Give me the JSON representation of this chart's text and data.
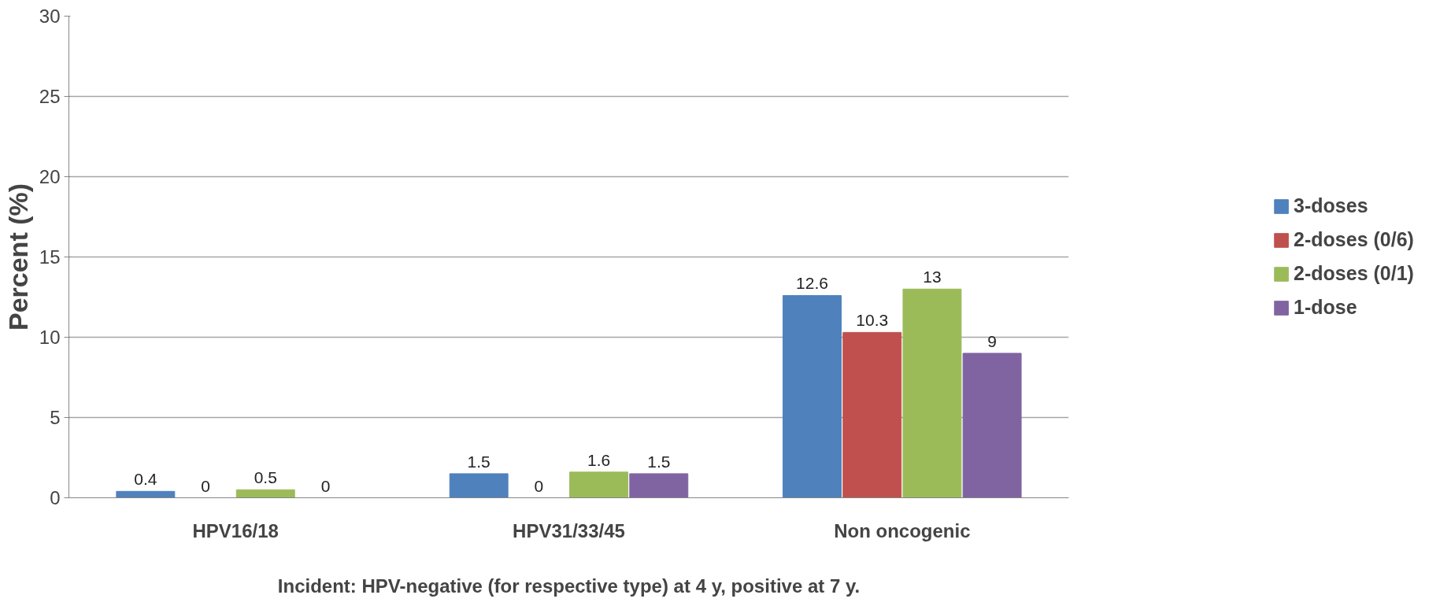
{
  "chart_data": {
    "type": "bar",
    "xlabel": "Incident: HPV-negative (for respective type) at 4 y, positive at 7 y.",
    "ylabel": "Percent (%)",
    "categories": [
      "HPV16/18",
      "HPV31/33/45",
      "Non oncogenic"
    ],
    "series": [
      {
        "name": "3-doses",
        "color": "#4f81bd",
        "values": [
          0.4,
          1.5,
          12.6
        ]
      },
      {
        "name": "2-doses (0/6)",
        "color": "#c0504d",
        "values": [
          0,
          0,
          10.3
        ]
      },
      {
        "name": "2-doses (0/1)",
        "color": "#9bbb59",
        "values": [
          0.5,
          1.6,
          13
        ]
      },
      {
        "name": "1-dose",
        "color": "#8064a2",
        "values": [
          0,
          1.5,
          9
        ]
      }
    ],
    "ylim": [
      0,
      30
    ],
    "yticks": [
      0,
      5,
      10,
      15,
      20,
      25,
      30
    ],
    "grid": "y",
    "legend": "right",
    "data_labels": true
  }
}
